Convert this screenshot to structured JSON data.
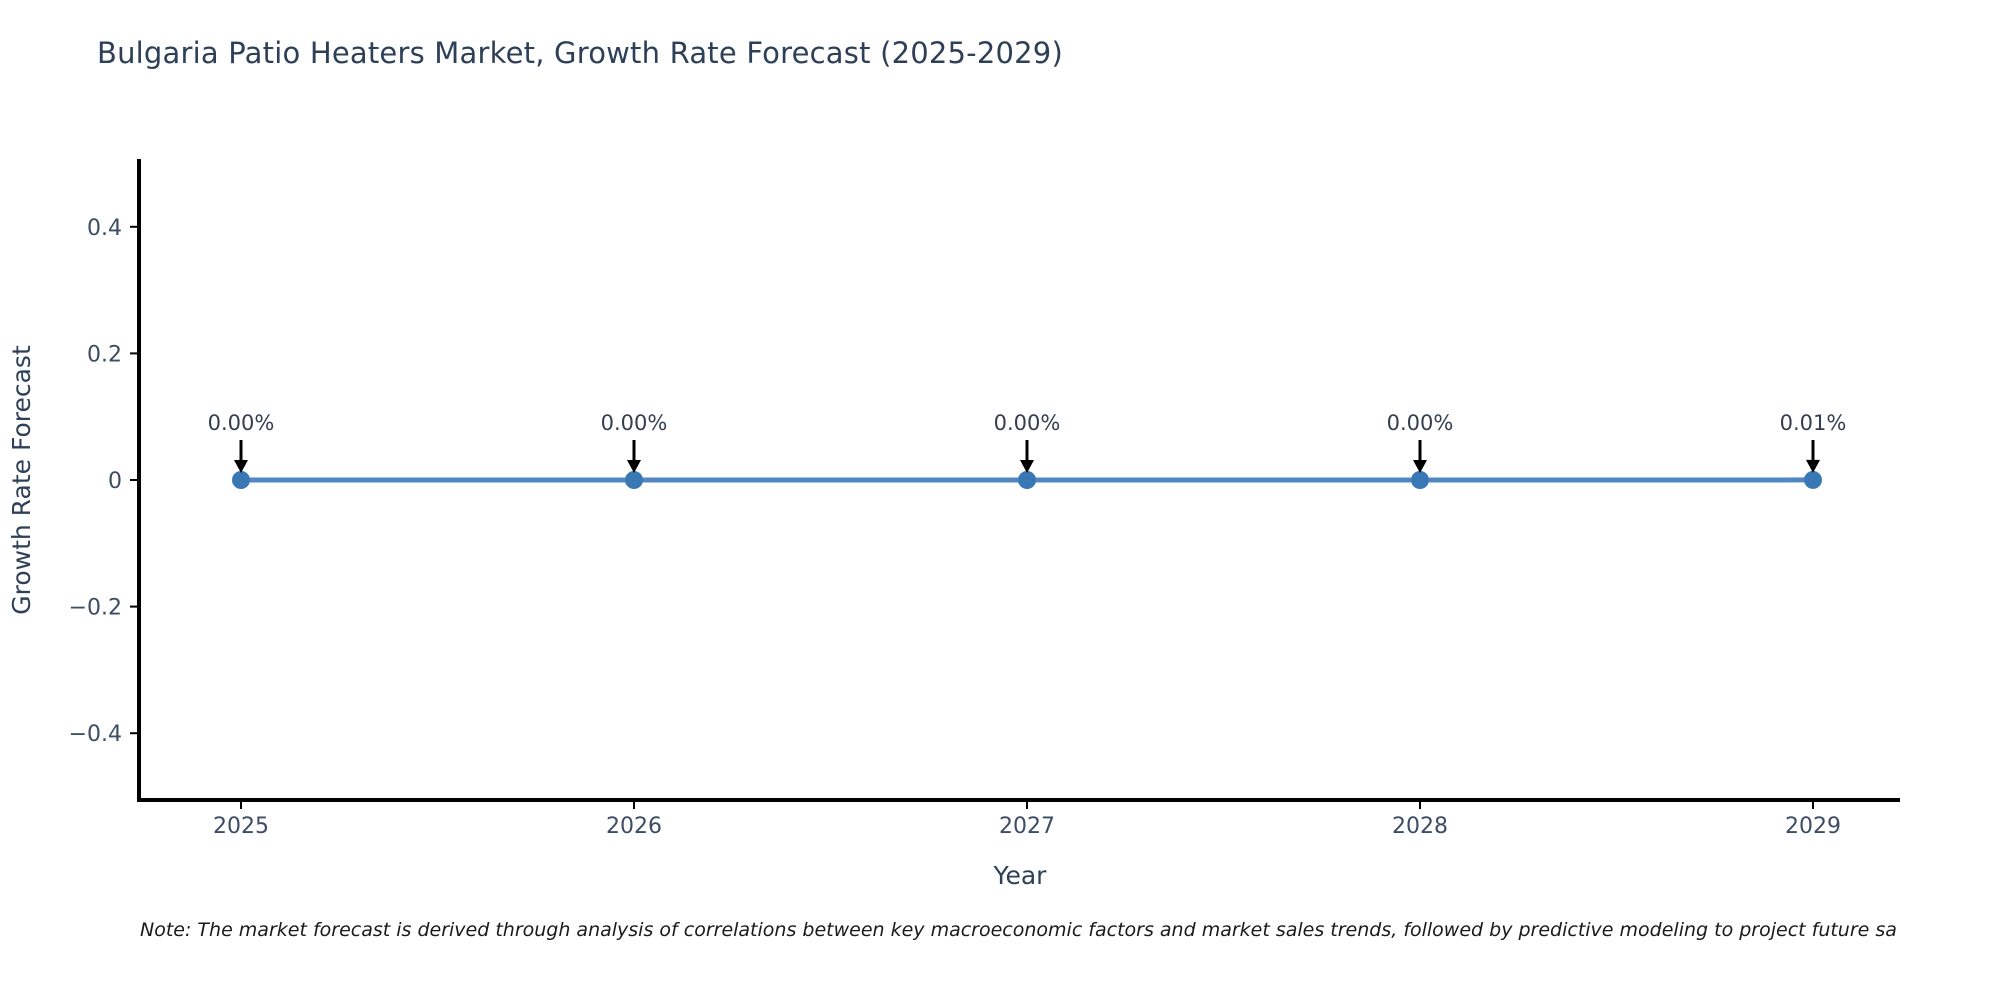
{
  "page": {
    "background": "#ffffff"
  },
  "chart_data": {
    "type": "line",
    "title": "Bulgaria Patio Heaters Market, Growth Rate Forecast (2025-2029)",
    "xlabel": "Year",
    "ylabel": "Growth Rate Forecast",
    "categories": [
      "2025",
      "2026",
      "2027",
      "2028",
      "2029"
    ],
    "series": [
      {
        "name": "Growth Rate Forecast",
        "values": [
          0.0,
          0.0,
          0.0,
          0.0,
          0.0001
        ],
        "point_labels": [
          "0.00%",
          "0.00%",
          "0.00%",
          "0.00%",
          "0.01%"
        ]
      }
    ],
    "ylim": [
      -0.5,
      0.5
    ],
    "yticks": [
      {
        "label": "0.4",
        "value": 0.4
      },
      {
        "label": "0.2",
        "value": 0.2
      },
      {
        "label": "0",
        "value": 0
      },
      {
        "label": "−0.2",
        "value": -0.2
      },
      {
        "label": "−0.4",
        "value": -0.4
      }
    ],
    "grid": false,
    "legend": false,
    "annotations_style": "percentage labels with black down-arrows above each data point"
  },
  "note": {
    "text": "Note: The market forecast is derived through analysis of correlations between key macroeconomic factors and market sales trends, followed by predictive modeling to project future sa"
  },
  "colors": {
    "line": "#5288c1",
    "marker": "#3a78b5",
    "axis": "#000000",
    "arrow": "#000000",
    "title_text": "#2e4057",
    "tick_text": "#3d4d63",
    "annotation_text": "#333f50",
    "note_text": "#1a1a1a"
  }
}
